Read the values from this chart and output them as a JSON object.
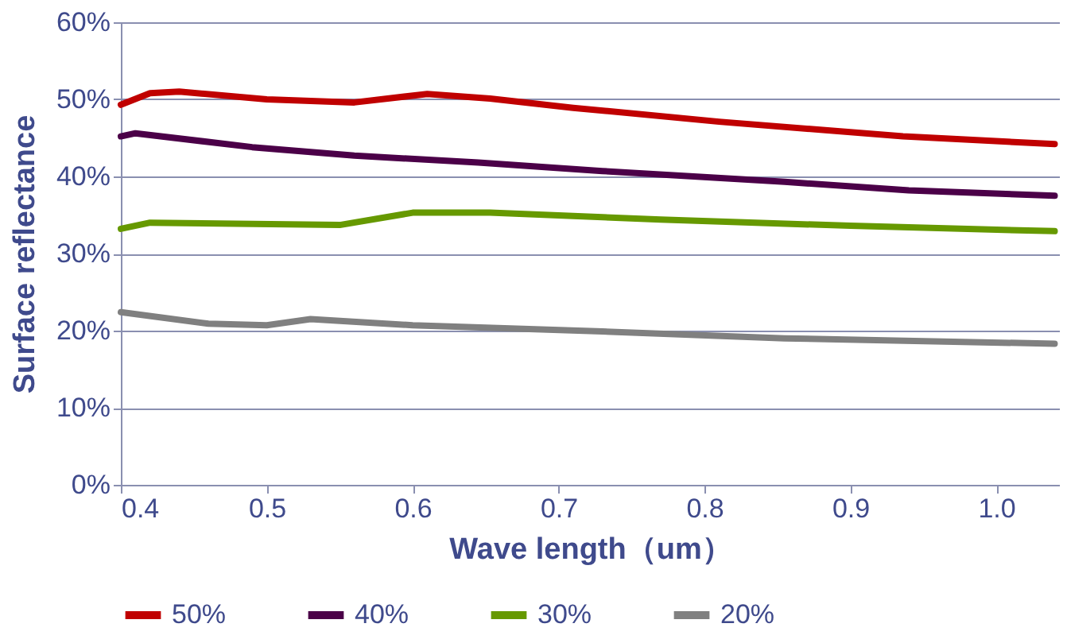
{
  "chart_data": {
    "type": "line",
    "xlabel": "Wave length（um）",
    "ylabel": "Surface reflectance",
    "xlim": [
      0.4,
      1.043
    ],
    "xticks": [
      0.4,
      0.5,
      0.6,
      0.7,
      0.8,
      0.9,
      {
        "value": 1,
        "label": "1.0"
      }
    ],
    "ylim": [
      0,
      60
    ],
    "yticks": [
      {
        "value": 0,
        "label": "0%"
      },
      {
        "value": 10,
        "label": "10%"
      },
      {
        "value": 20,
        "label": "20%"
      },
      {
        "value": 30,
        "label": "30%"
      },
      {
        "value": 40,
        "label": "40%"
      },
      {
        "value": 50,
        "label": "50%"
      },
      {
        "value": 60,
        "label": "60%"
      }
    ],
    "grid": "y",
    "legend": "bottom",
    "line_style": "solid",
    "marker": "none",
    "series": [
      {
        "name": "50%",
        "color": "#c00000",
        "x": [
          0.4,
          0.42,
          0.44,
          0.5,
          0.56,
          0.61,
          0.653,
          0.71,
          0.81,
          0.936,
          1.04
        ],
        "values": [
          49.3,
          50.8,
          51,
          50,
          49.6,
          50.7,
          50.1,
          48.9,
          47.1,
          45.2,
          44.2
        ]
      },
      {
        "name": "40%",
        "color": "#4b0048",
        "x": [
          0.4,
          0.41,
          0.49,
          0.56,
          0.645,
          0.73,
          0.855,
          0.94,
          1.04
        ],
        "values": [
          45.2,
          45.6,
          43.8,
          42.7,
          41.8,
          40.7,
          39.3,
          38.2,
          37.5
        ]
      },
      {
        "name": "30%",
        "color": "#669900",
        "x": [
          0.4,
          0.42,
          0.55,
          0.6,
          0.653,
          0.77,
          0.9,
          1.04
        ],
        "values": [
          33.2,
          34,
          33.7,
          35.3,
          35.3,
          34.4,
          33.6,
          32.9
        ]
      },
      {
        "name": "20%",
        "color": "#808080",
        "x": [
          0.4,
          0.46,
          0.5,
          0.53,
          0.6,
          0.73,
          0.855,
          1.04
        ],
        "values": [
          22.4,
          20.9,
          20.7,
          21.5,
          20.7,
          19.9,
          19.0,
          18.3
        ]
      }
    ]
  }
}
